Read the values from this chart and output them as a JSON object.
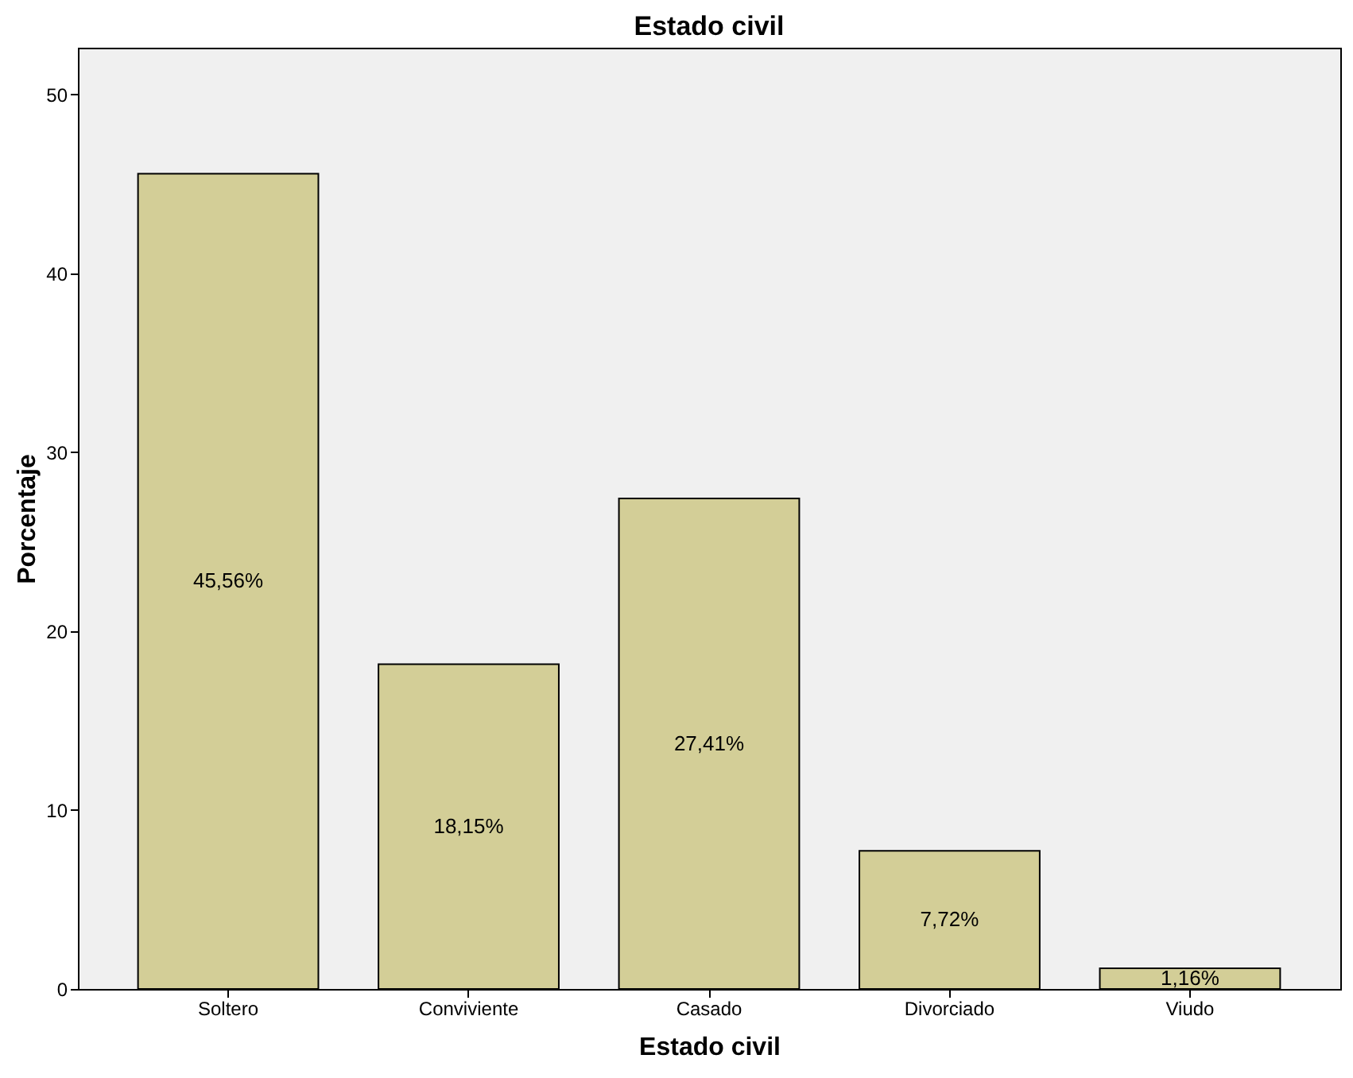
{
  "chart_data": {
    "type": "bar",
    "title": "Estado civil",
    "xlabel": "Estado civil",
    "ylabel": "Porcentaje",
    "categories": [
      "Soltero",
      "Conviviente",
      "Casado",
      "Divorciado",
      "Viudo"
    ],
    "values": [
      45.56,
      18.15,
      27.41,
      7.72,
      1.16
    ],
    "value_labels": [
      "45,56%",
      "18,15%",
      "27,41%",
      "7,72%",
      "1,16%"
    ],
    "color": "#d3ce97",
    "ylim": [
      0,
      52.6
    ],
    "yticks": [
      0,
      10,
      20,
      30,
      40,
      50
    ]
  }
}
